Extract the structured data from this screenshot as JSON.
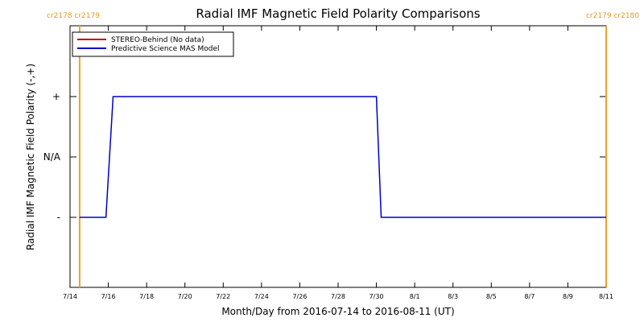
{
  "chart_data": {
    "type": "line",
    "title": "Radial IMF Magnetic Field Polarity Comparisons",
    "xlabel": "Month/Day from 2016-07-14 to 2016-08-11 (UT)",
    "ylabel": "Radial IMF Magnetic Field Polarity (-,+)",
    "xlim": [
      "2016-07-14",
      "2016-08-11"
    ],
    "x_tick_labels": [
      "7/14",
      "7/16",
      "7/18",
      "7/20",
      "7/22",
      "7/24",
      "7/26",
      "7/28",
      "7/30",
      "8/1",
      "8/3",
      "8/5",
      "8/7",
      "8/9",
      "8/11"
    ],
    "y_tick_labels": [
      "+",
      "N/A",
      "-"
    ],
    "y_categories": [
      "-",
      "N/A",
      "+"
    ],
    "grid": false,
    "legend_position": "top-left",
    "legend": [
      {
        "name": "STEREO-Behind (No data)",
        "color": "#c00000"
      },
      {
        "name": "Predictive Science MAS Model",
        "color": "#0000cc"
      }
    ],
    "series": [
      {
        "name": "Predictive Science MAS Model",
        "color": "#0000cc",
        "points": [
          {
            "x": "2016-07-14 12:00",
            "y": "-"
          },
          {
            "x": "2016-07-15 21:00",
            "y": "-"
          },
          {
            "x": "2016-07-16 06:00",
            "y": "+"
          },
          {
            "x": "2016-07-30 00:00",
            "y": "+"
          },
          {
            "x": "2016-07-30 06:00",
            "y": "-"
          },
          {
            "x": "2016-08-11 00:00",
            "y": "-"
          }
        ]
      },
      {
        "name": "STEREO-Behind (No data)",
        "color": "#c00000",
        "points": []
      }
    ],
    "carrington_markers": [
      {
        "date": "2016-07-14 12:00",
        "label": "cr2178 cr2179",
        "color": "#f0a030"
      },
      {
        "date": "2016-08-11 00:00",
        "label": "cr2179 cr2180",
        "color": "#f0a030"
      }
    ]
  }
}
